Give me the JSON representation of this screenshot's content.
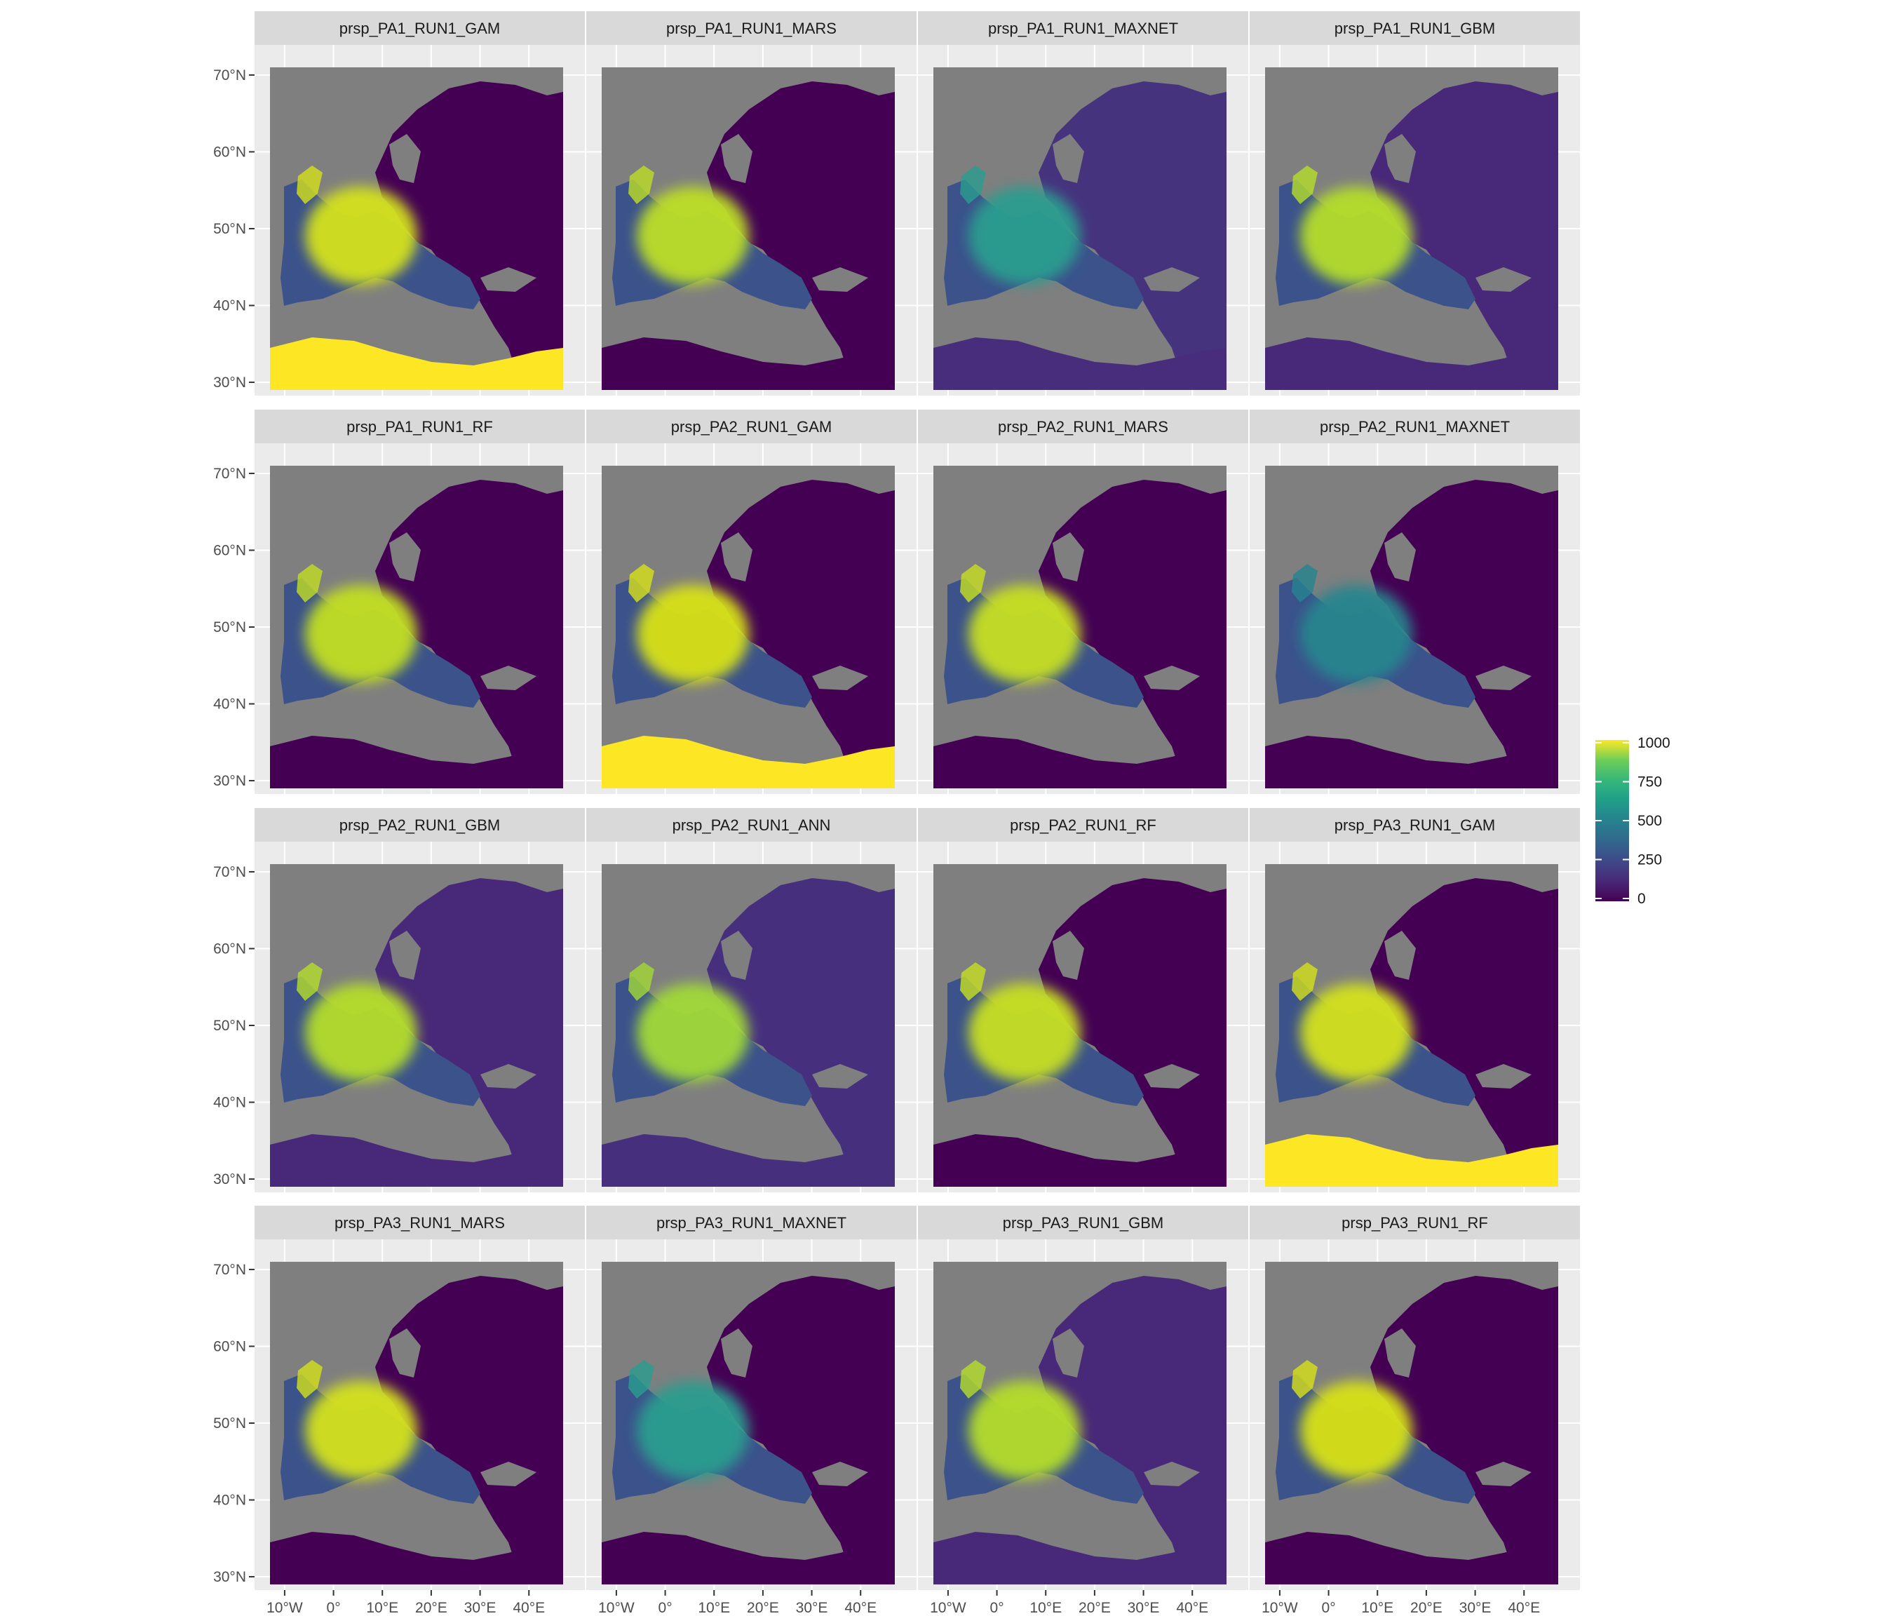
{
  "figure": {
    "panels": [
      {
        "title": "prsp_PA1_RUN1_GAM"
      },
      {
        "title": "prsp_PA1_RUN1_MARS"
      },
      {
        "title": "prsp_PA1_RUN1_MAXNET"
      },
      {
        "title": "prsp_PA1_RUN1_GBM"
      },
      {
        "title": "prsp_PA1_RUN1_RF"
      },
      {
        "title": "prsp_PA2_RUN1_GAM"
      },
      {
        "title": "prsp_PA2_RUN1_MARS"
      },
      {
        "title": "prsp_PA2_RUN1_MAXNET"
      },
      {
        "title": "prsp_PA2_RUN1_GBM"
      },
      {
        "title": "prsp_PA2_RUN1_ANN"
      },
      {
        "title": "prsp_PA2_RUN1_RF"
      },
      {
        "title": "prsp_PA3_RUN1_GAM"
      },
      {
        "title": "prsp_PA3_RUN1_MARS"
      },
      {
        "title": "prsp_PA3_RUN1_MAXNET"
      },
      {
        "title": "prsp_PA3_RUN1_GBM"
      },
      {
        "title": "prsp_PA3_RUN1_RF"
      }
    ],
    "y_ticks": [
      "70°N",
      "60°N",
      "50°N",
      "40°N",
      "30°N"
    ],
    "x_ticks": [
      "10°W",
      "0°",
      "10°E",
      "20°E",
      "30°E",
      "40°E"
    ],
    "legend": {
      "labels": [
        "1000",
        "750",
        "500",
        "250",
        "0"
      ],
      "scale": "viridis",
      "range": [
        0,
        1000
      ]
    },
    "colors": {
      "panel_background": "#ebebeb",
      "strip_background": "#d9d9d9",
      "sea_na": "#7f7f7f",
      "low": "#440154",
      "high": "#fde725"
    }
  }
}
